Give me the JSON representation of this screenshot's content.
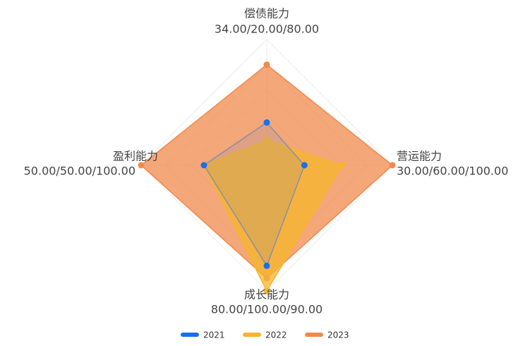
{
  "chart_data": {
    "type": "radar",
    "indicators": [
      {
        "name": "偿债能力",
        "label": "34.00/20.00/80.00"
      },
      {
        "name": "营运能力",
        "label": "30.00/60.00/100.00"
      },
      {
        "name": "成长能力",
        "label": "80.00/100.00/90.00"
      },
      {
        "name": "盈利能力",
        "label": "50.00/50.00/100.00"
      }
    ],
    "rlim": [
      0,
      100
    ],
    "series": [
      {
        "name": "2021",
        "color": "#1a6fe8",
        "values": [
          34,
          30,
          80,
          50
        ]
      },
      {
        "name": "2022",
        "color": "#f7b52c",
        "values": [
          20,
          60,
          100,
          50
        ]
      },
      {
        "name": "2023",
        "color": "#f0894b",
        "values": [
          80,
          100,
          90,
          100
        ]
      }
    ],
    "legend": "bottom"
  }
}
